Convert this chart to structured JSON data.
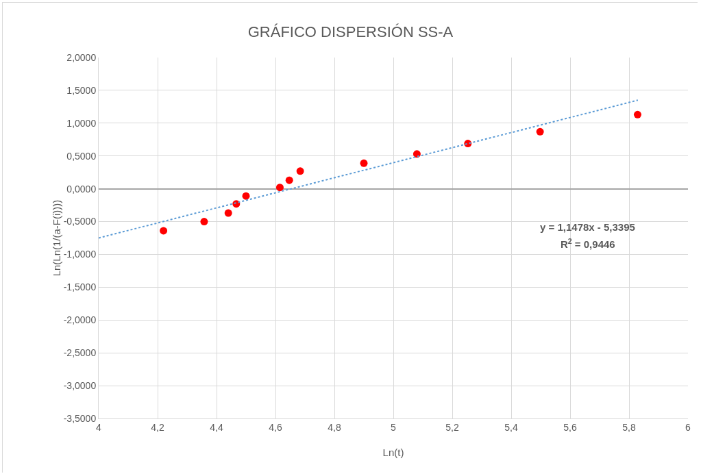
{
  "chart_data": {
    "type": "scatter",
    "title": "GRÁFICO DISPERSIÓN SS-A",
    "xlabel": "Ln(t)",
    "ylabel": "Ln(Ln(1/(a-F(i))))",
    "series": [
      {
        "color": "#ff0000",
        "marker": "circle",
        "x": [
          4.22,
          4.358,
          4.44,
          4.467,
          4.5,
          4.615,
          4.647,
          4.684,
          4.9,
          5.08,
          5.253,
          5.498,
          5.829
        ],
        "values": [
          -0.64,
          -0.5,
          -0.37,
          -0.23,
          -0.11,
          0.02,
          0.13,
          0.27,
          0.39,
          0.53,
          0.69,
          0.87,
          1.13
        ]
      },
      {
        "type": "line",
        "color": "#5b9bd5",
        "line_style": "dotted",
        "marker": "none",
        "x": [
          4,
          5.83
        ],
        "values": [
          -0.75,
          1.35
        ]
      }
    ],
    "xlim": [
      4,
      6
    ],
    "xticks": [
      4,
      {
        "value": 4.2,
        "label": "4,2"
      },
      {
        "value": 4.4,
        "label": "4,4"
      },
      {
        "value": 4.6,
        "label": "4,6"
      },
      {
        "value": 4.8,
        "label": "4,8"
      },
      5,
      {
        "value": 5.2,
        "label": "5,2"
      },
      {
        "value": 5.4,
        "label": "5,4"
      },
      {
        "value": 5.6,
        "label": "5,6"
      },
      {
        "value": 5.8,
        "label": "5,8"
      },
      6
    ],
    "ylim": [
      -3.5,
      2
    ],
    "yticks": [
      {
        "value": -3.5,
        "label": "-3,5000"
      },
      {
        "value": -3,
        "label": "-3,0000"
      },
      {
        "value": -2.5,
        "label": "-2,5000"
      },
      {
        "value": -2,
        "label": "-2,0000"
      },
      {
        "value": -1.5,
        "label": "-1,5000"
      },
      {
        "value": -1,
        "label": "-1,0000"
      },
      {
        "value": -0.5,
        "label": "-0,5000"
      },
      {
        "value": 0,
        "label": "0,0000"
      },
      {
        "value": 0.5,
        "label": "0,5000"
      },
      {
        "value": 1,
        "label": "1,0000"
      },
      {
        "value": 1.5,
        "label": "1,5000"
      },
      {
        "value": 2,
        "label": "2,0000"
      }
    ],
    "grid": true,
    "annotations": [
      "y = 1,1478x - 5,3395",
      "R$^{2}$ = 0,9446"
    ]
  }
}
